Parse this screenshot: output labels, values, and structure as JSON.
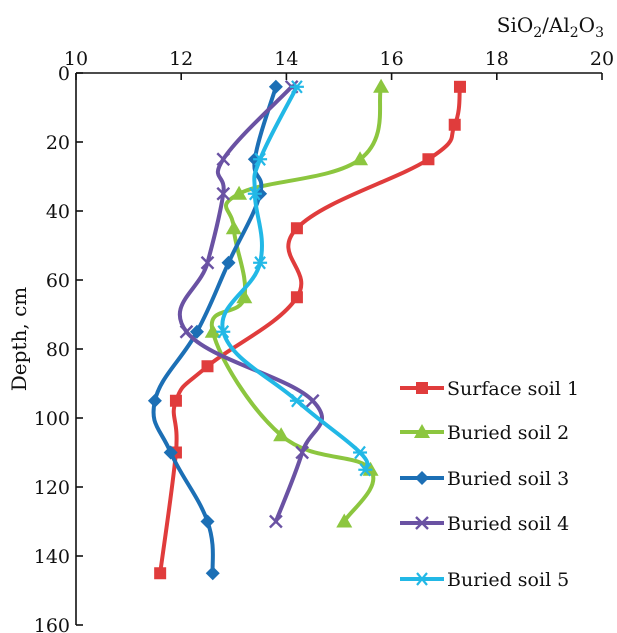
{
  "chart_data": {
    "type": "line",
    "x_label_parts": [
      "SiO",
      "2",
      "/Al",
      "2",
      "O",
      "3"
    ],
    "y_label": "Depth, cm",
    "xlim": [
      10,
      20
    ],
    "ylim": [
      0,
      160
    ],
    "x_ticks": [
      "10",
      "12",
      "14",
      "16",
      "18",
      "20"
    ],
    "y_ticks": [
      "0",
      "20",
      "40",
      "60",
      "80",
      "100",
      "120",
      "140",
      "160"
    ],
    "x_tick_values": [
      10,
      12,
      14,
      16,
      18,
      20
    ],
    "y_tick_values": [
      0,
      20,
      40,
      60,
      80,
      100,
      120,
      140,
      160
    ],
    "legend_position": "right",
    "grid": false,
    "series": [
      {
        "name": "Surface soil 1",
        "color": "#e03c3c",
        "marker": "square",
        "points": [
          [
            17.3,
            4
          ],
          [
            17.2,
            15
          ],
          [
            16.7,
            25
          ],
          [
            14.2,
            45
          ],
          [
            14.2,
            65
          ],
          [
            12.5,
            85
          ],
          [
            11.9,
            95
          ],
          [
            11.9,
            110
          ],
          [
            11.6,
            145
          ]
        ]
      },
      {
        "name": "Buried soil 2",
        "color": "#8cc63f",
        "marker": "triangle",
        "points": [
          [
            15.8,
            4
          ],
          [
            15.4,
            25
          ],
          [
            13.1,
            35
          ],
          [
            13.0,
            45
          ],
          [
            13.2,
            65
          ],
          [
            12.6,
            75
          ],
          [
            13.9,
            105
          ],
          [
            15.6,
            115
          ],
          [
            15.1,
            130
          ]
        ]
      },
      {
        "name": "Buried soil 3",
        "color": "#1c6fb5",
        "marker": "diamond",
        "points": [
          [
            13.8,
            4
          ],
          [
            13.4,
            25
          ],
          [
            13.5,
            35
          ],
          [
            12.9,
            55
          ],
          [
            12.3,
            75
          ],
          [
            11.5,
            95
          ],
          [
            11.8,
            110
          ],
          [
            12.5,
            130
          ],
          [
            12.6,
            145
          ]
        ]
      },
      {
        "name": "Buried soil 4",
        "color": "#6a52a3",
        "marker": "x",
        "points": [
          [
            14.1,
            4
          ],
          [
            12.8,
            25
          ],
          [
            12.8,
            35
          ],
          [
            12.5,
            55
          ],
          [
            12.1,
            75
          ],
          [
            14.5,
            95
          ],
          [
            14.3,
            110
          ],
          [
            13.8,
            130
          ]
        ]
      },
      {
        "name": "Buried soil 5",
        "color": "#22b8e6",
        "marker": "asterisk",
        "points": [
          [
            14.2,
            4
          ],
          [
            13.5,
            25
          ],
          [
            13.4,
            35
          ],
          [
            13.5,
            55
          ],
          [
            12.8,
            75
          ],
          [
            14.2,
            95
          ],
          [
            15.4,
            110
          ],
          [
            15.5,
            115
          ]
        ]
      }
    ]
  }
}
